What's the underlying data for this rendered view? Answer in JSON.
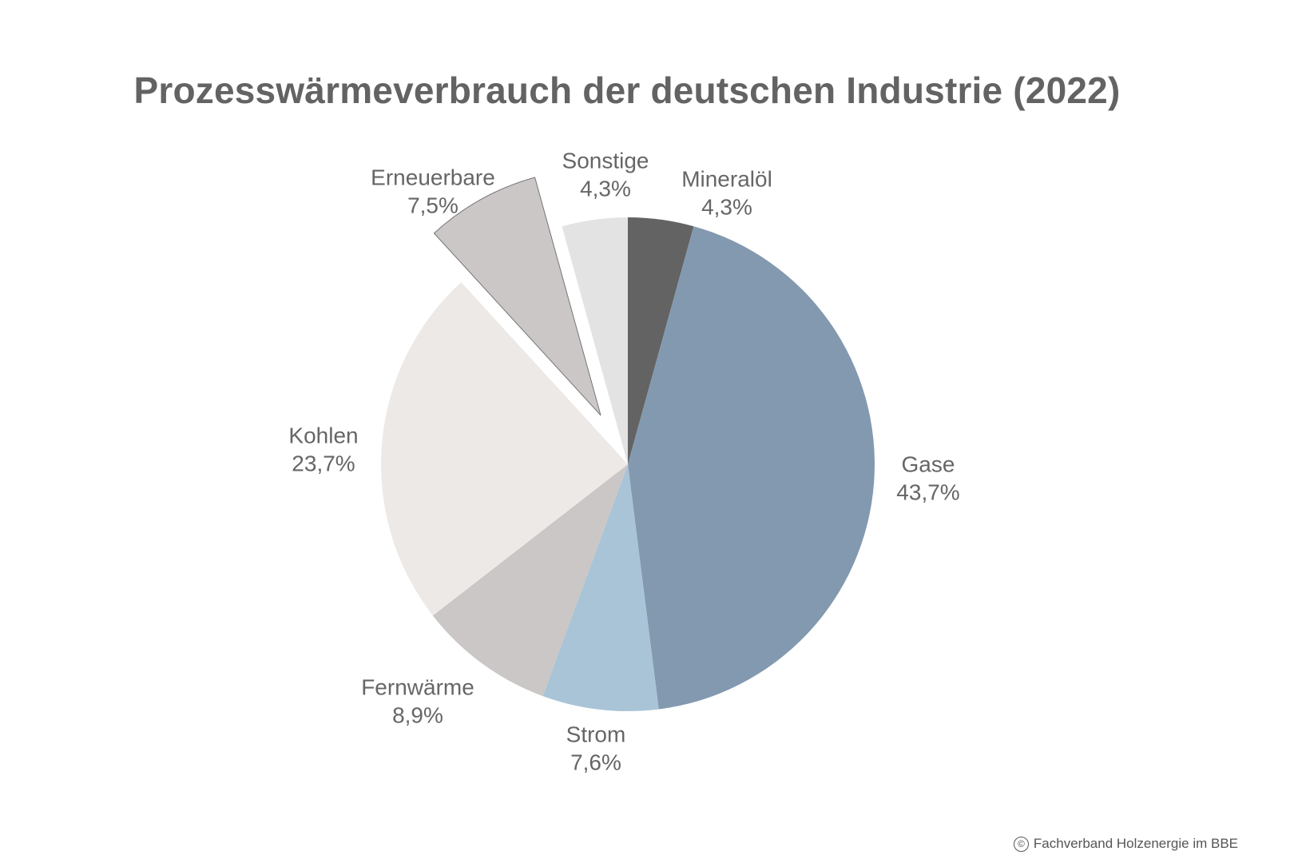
{
  "chart_data": {
    "type": "pie",
    "title": "Prozesswärmeverbrauch der deutschen Industrie (2022)",
    "start": "top",
    "direction": "clockwise",
    "slices": [
      {
        "label": "Mineralöl",
        "value": 4.3,
        "value_label": "4,3%",
        "color": "#636363",
        "exploded": false
      },
      {
        "label": "Gase",
        "value": 43.7,
        "value_label": "43,7%",
        "color": "#8399b0",
        "exploded": false
      },
      {
        "label": "Strom",
        "value": 7.6,
        "value_label": "7,6%",
        "color": "#a9c4d6",
        "exploded": false
      },
      {
        "label": "Fernwärme",
        "value": 8.9,
        "value_label": "8,9%",
        "color": "#cac7c6",
        "exploded": false
      },
      {
        "label": "Kohlen",
        "value": 23.7,
        "value_label": "23,7%",
        "color": "#ede9e6",
        "exploded": false
      },
      {
        "label": "Erneuerbare",
        "value": 7.5,
        "value_label": "7,5%",
        "color": "#cac7c6",
        "exploded": true
      },
      {
        "label": "Sonstige",
        "value": 4.3,
        "value_label": "4,3%",
        "color": "#e3e3e3",
        "exploded": false
      }
    ],
    "unit": "%"
  },
  "credit": {
    "symbol": "©",
    "text": "Fachverband Holzenergie im BBE"
  }
}
